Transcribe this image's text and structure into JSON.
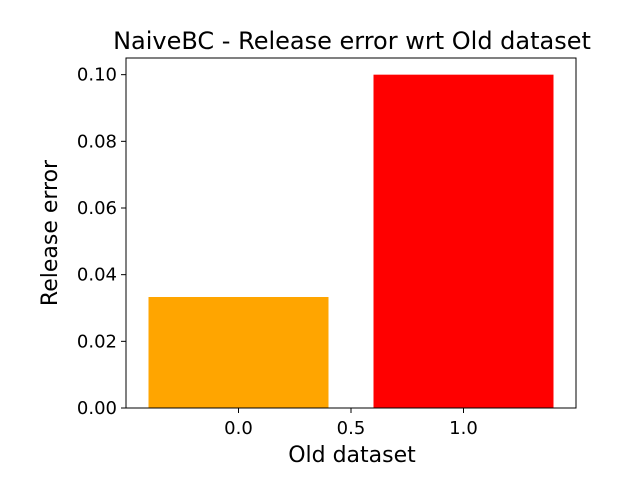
{
  "chart_data": {
    "type": "bar",
    "title": "NaiveBC - Release error wrt Old dataset",
    "xlabel": "Old dataset",
    "ylabel": "Release error",
    "x": [
      0.0,
      1.0
    ],
    "values": [
      0.0333,
      0.1
    ],
    "bar_colors": [
      "#FFA500",
      "#FF0000"
    ],
    "xlim": [
      -0.5,
      1.5
    ],
    "ylim": [
      0,
      0.105
    ],
    "x_ticks": [
      0.0,
      0.5,
      1.0
    ],
    "x_tick_labels": [
      "0.0",
      "0.5",
      "1.0"
    ],
    "y_ticks": [
      0.0,
      0.02,
      0.04,
      0.06,
      0.08,
      0.1
    ],
    "y_tick_labels": [
      "0.00",
      "0.02",
      "0.04",
      "0.06",
      "0.08",
      "0.10"
    ],
    "grid": false,
    "legend": null
  }
}
